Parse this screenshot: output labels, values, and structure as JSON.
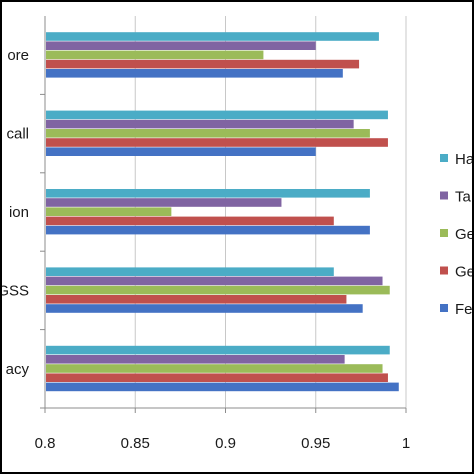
{
  "chart_data": {
    "type": "bar",
    "orientation": "horizontal",
    "categories": [
      "acy",
      "GSS",
      "ion",
      "call",
      "ore"
    ],
    "xlim": [
      0.8,
      1.0
    ],
    "xticks": [
      "0.8",
      "0.85",
      "0.9",
      "0.95",
      "1"
    ],
    "grid": true,
    "legend_position": "right",
    "series": [
      {
        "name": "Fe",
        "color": "#4472C4",
        "values": [
          0.996,
          0.976,
          0.98,
          0.95,
          0.965
        ]
      },
      {
        "name": "Ge",
        "color": "#C0504D",
        "values": [
          0.99,
          0.967,
          0.96,
          0.99,
          0.974
        ]
      },
      {
        "name": "Ge",
        "color": "#9BBB59",
        "values": [
          0.987,
          0.991,
          0.87,
          0.98,
          0.921
        ]
      },
      {
        "name": "Ta",
        "color": "#8064A2",
        "values": [
          0.966,
          0.987,
          0.931,
          0.971,
          0.95
        ]
      },
      {
        "name": "Ha",
        "color": "#4BACC6",
        "values": [
          0.991,
          0.96,
          0.98,
          0.99,
          0.985
        ]
      }
    ]
  }
}
